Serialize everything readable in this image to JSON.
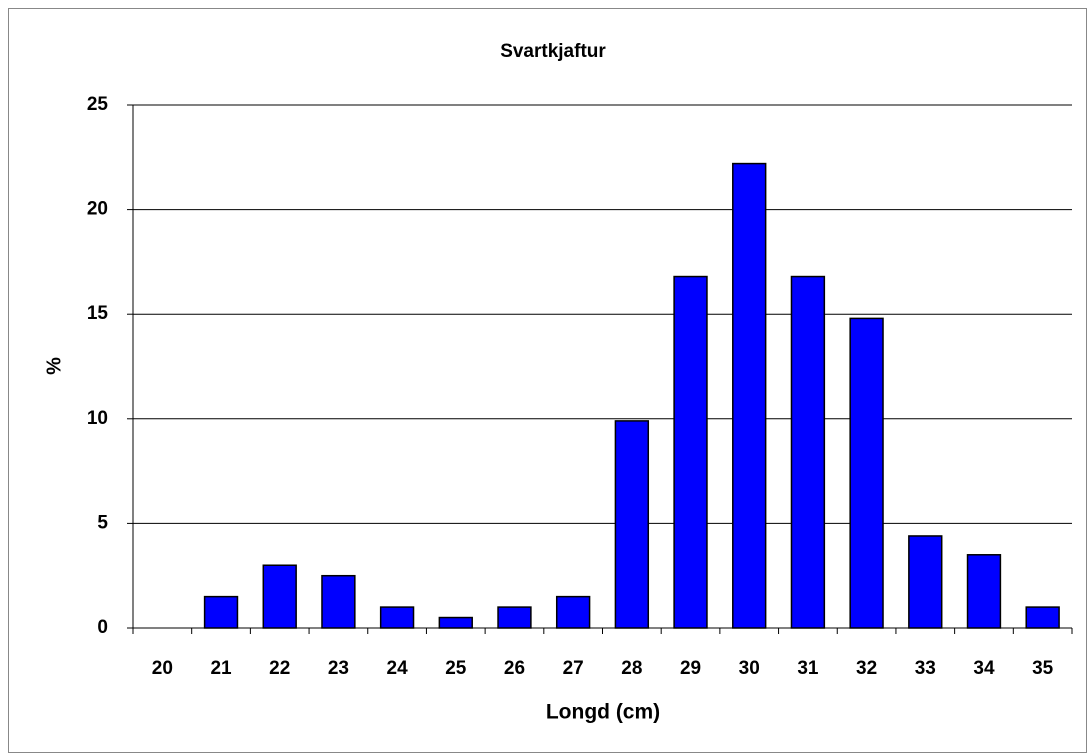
{
  "chart_data": {
    "type": "bar",
    "title": "Svartkjaftur",
    "x_label": "Longd (cm)",
    "y_label": "%",
    "categories": [
      "20",
      "21",
      "22",
      "23",
      "24",
      "25",
      "26",
      "27",
      "28",
      "29",
      "30",
      "31",
      "32",
      "33",
      "34",
      "35"
    ],
    "values": [
      0,
      1.5,
      3.0,
      2.5,
      1.0,
      0.5,
      1.0,
      1.5,
      9.9,
      16.8,
      22.2,
      16.8,
      14.8,
      4.4,
      3.5,
      1.0
    ],
    "color": "#0000ff",
    "ylim": [
      0,
      25
    ],
    "yticks": [
      0,
      5,
      10,
      15,
      20,
      25
    ],
    "grid": true
  }
}
